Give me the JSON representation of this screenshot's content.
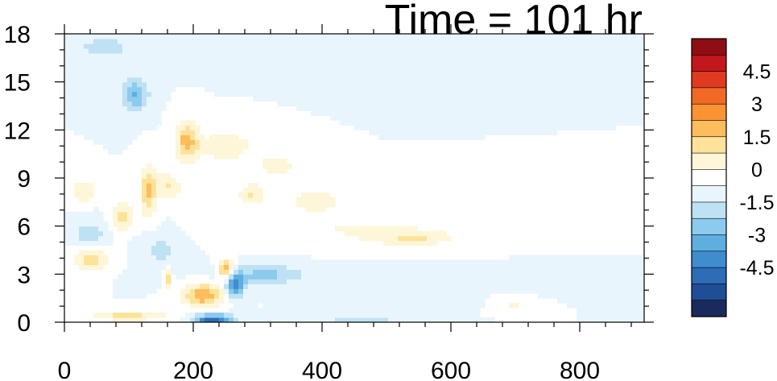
{
  "chart_data": {
    "type": "heatmap",
    "title": "Time = 101 hr",
    "xlabel": "",
    "ylabel": "",
    "xlim": [
      0,
      900
    ],
    "ylim": [
      0,
      18
    ],
    "x_ticks": [
      0,
      200,
      400,
      600,
      800
    ],
    "y_ticks": [
      0,
      3,
      6,
      9,
      12,
      15,
      18
    ],
    "colorbar": {
      "levels": [
        -5.25,
        -4.5,
        -3.75,
        -3,
        -2.25,
        -1.5,
        -0.75,
        0,
        0.75,
        1.5,
        2.25,
        3,
        3.75,
        4.5,
        5.25
      ],
      "colors": [
        "#1b2a5c",
        "#1f4e96",
        "#2d6cb6",
        "#3f8dce",
        "#5eaee0",
        "#8ccbee",
        "#bfe1f4",
        "#e9f5fc",
        "#ffffff",
        "#fdf6d8",
        "#fde39a",
        "#fdbd5c",
        "#f99333",
        "#f06a25",
        "#e03b20",
        "#c1171d",
        "#8e0e14"
      ],
      "tick_labels": [
        "4.5",
        "3",
        "1.5",
        "0",
        "-1.5",
        "-3",
        "-4.5"
      ]
    },
    "features": [
      {
        "kind": "warm",
        "x": 470,
        "y": 5.8,
        "sx": 190,
        "sy": 0.9,
        "value": 0.8
      },
      {
        "kind": "warm",
        "x": 540,
        "y": 5.2,
        "sx": 60,
        "sy": 0.4,
        "value": 1.2
      },
      {
        "kind": "warm",
        "x": 390,
        "y": 7.6,
        "sx": 40,
        "sy": 0.7,
        "value": 1.4
      },
      {
        "kind": "warm",
        "x": 330,
        "y": 9.8,
        "sx": 30,
        "sy": 0.6,
        "value": 1.3
      },
      {
        "kind": "warm",
        "x": 250,
        "y": 11,
        "sx": 40,
        "sy": 0.9,
        "value": 1.5
      },
      {
        "kind": "warm",
        "x": 190,
        "y": 11.3,
        "sx": 18,
        "sy": 1.2,
        "value": 2.6
      },
      {
        "kind": "warm",
        "x": 160,
        "y": 8.5,
        "sx": 20,
        "sy": 0.8,
        "value": 1.6
      },
      {
        "kind": "warm",
        "x": 130,
        "y": 8.2,
        "sx": 12,
        "sy": 1.6,
        "value": 2.3
      },
      {
        "kind": "warm",
        "x": 90,
        "y": 6.6,
        "sx": 18,
        "sy": 0.9,
        "value": 1.8
      },
      {
        "kind": "warm",
        "x": 40,
        "y": 3.9,
        "sx": 28,
        "sy": 0.7,
        "value": 2.0
      },
      {
        "kind": "warm",
        "x": 30,
        "y": 8.2,
        "sx": 20,
        "sy": 0.7,
        "value": 1.5
      },
      {
        "kind": "warm",
        "x": 290,
        "y": 8,
        "sx": 20,
        "sy": 0.7,
        "value": 1.6
      },
      {
        "kind": "warm",
        "x": 215,
        "y": 1.7,
        "sx": 30,
        "sy": 0.7,
        "value": 3.0
      },
      {
        "kind": "warm",
        "x": 250,
        "y": 3.3,
        "sx": 12,
        "sy": 0.6,
        "value": 3.0
      },
      {
        "kind": "warm",
        "x": 160,
        "y": 2.7,
        "sx": 6,
        "sy": 0.6,
        "value": 2.2
      },
      {
        "kind": "warm",
        "x": 100,
        "y": 0.4,
        "sx": 60,
        "sy": 0.3,
        "value": 1.8
      },
      {
        "kind": "warm",
        "x": 700,
        "y": 1.0,
        "sx": 20,
        "sy": 0.3,
        "value": 0.9
      },
      {
        "kind": "cool",
        "x": 310,
        "y": 3.0,
        "sx": 55,
        "sy": 0.6,
        "value": -1.6
      },
      {
        "kind": "cool",
        "x": 265,
        "y": 2.3,
        "sx": 14,
        "sy": 0.7,
        "value": -3.4
      },
      {
        "kind": "cool",
        "x": 230,
        "y": 0.2,
        "sx": 30,
        "sy": 0.3,
        "value": -4.3
      },
      {
        "kind": "cool",
        "x": 110,
        "y": 14.2,
        "sx": 20,
        "sy": 1.0,
        "value": -2.4
      },
      {
        "kind": "cool",
        "x": 60,
        "y": 17.2,
        "sx": 50,
        "sy": 0.9,
        "value": -1.0
      },
      {
        "kind": "cool",
        "x": 40,
        "y": 5.5,
        "sx": 25,
        "sy": 0.9,
        "value": -1.2
      },
      {
        "kind": "cool",
        "x": 150,
        "y": 4.5,
        "sx": 30,
        "sy": 1.1,
        "value": -1.0
      },
      {
        "kind": "cool",
        "x": 560,
        "y": 3.0,
        "sx": 260,
        "sy": 0.5,
        "value": -0.5
      },
      {
        "kind": "cool",
        "x": 460,
        "y": 0.2,
        "sx": 60,
        "sy": 0.25,
        "value": -1.3
      },
      {
        "kind": "cool",
        "x": 200,
        "y": 16.8,
        "sx": 70,
        "sy": 0.8,
        "value": -0.7
      },
      {
        "kind": "cool",
        "x": 430,
        "y": 16.2,
        "sx": 80,
        "sy": 0.8,
        "value": -0.6
      },
      {
        "kind": "cool",
        "x": 600,
        "y": 1.2,
        "sx": 20,
        "sy": 0.3,
        "value": -0.9
      }
    ]
  }
}
